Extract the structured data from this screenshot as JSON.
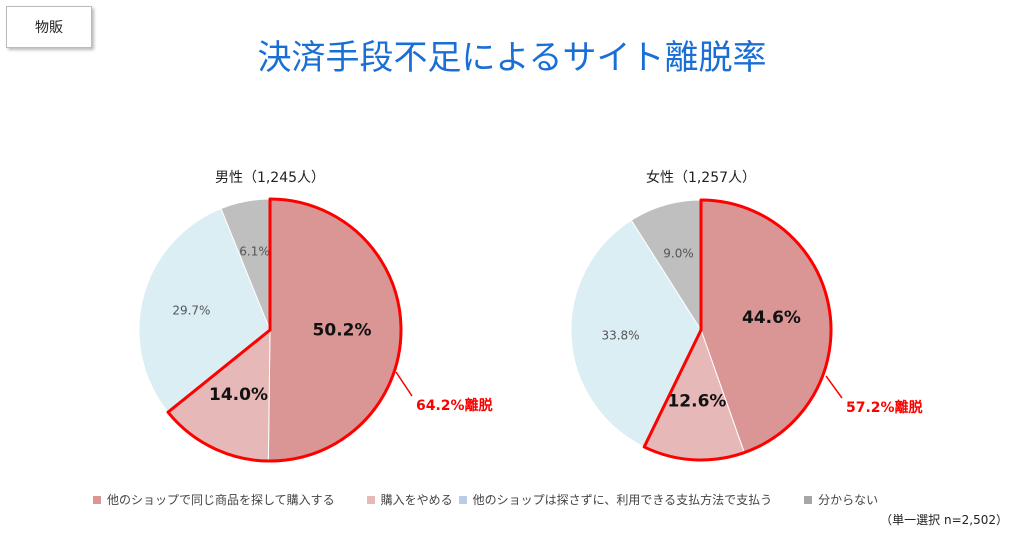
{
  "tag": "物販",
  "title": "決済手段不足によるサイト離脱率",
  "colors": [
    "#d99694",
    "#e6b9b8",
    "#dbeef4",
    "#bfbfbf"
  ],
  "legend_colors": [
    "#d99694",
    "#e6b9b8",
    "#b9cde5",
    "#a6a6a6"
  ],
  "highlight_color": "#ff0000",
  "chart_data": [
    {
      "type": "pie",
      "title": "男性（1,245人）",
      "categories": [
        "他のショップで同じ商品を探して購入する",
        "購入をやめる",
        "他のショップは探さずに、利用できる支払方法で支払う",
        "分からない"
      ],
      "values": [
        50.2,
        14.0,
        29.7,
        6.1
      ],
      "labels": [
        "50.2%",
        "14.0%",
        "29.7%",
        "6.1%"
      ],
      "annotation": "64.2%離脱"
    },
    {
      "type": "pie",
      "title": "女性（1,257人）",
      "categories": [
        "他のショップで同じ商品を探して購入する",
        "購入をやめる",
        "他のショップは探さずに、利用できる支払方法で支払う",
        "分からない"
      ],
      "values": [
        44.6,
        12.6,
        33.8,
        9.0
      ],
      "labels": [
        "44.6%",
        "12.6%",
        "33.8%",
        "9.0%"
      ],
      "annotation": "57.2%離脱"
    }
  ],
  "legend": [
    "他のショップで同じ商品を探して購入する",
    "購入をやめる",
    "他のショップは探さずに、利用できる支払方法で支払う",
    "分からない"
  ],
  "note": "（単一選択 n=2,502）"
}
